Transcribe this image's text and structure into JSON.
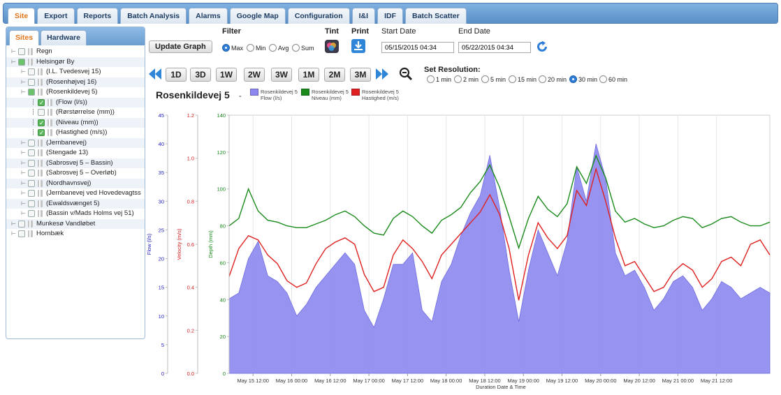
{
  "tabs": [
    {
      "label": "Site",
      "active": true
    },
    {
      "label": "Export",
      "active": false
    },
    {
      "label": "Reports",
      "active": false
    },
    {
      "label": "Batch Analysis",
      "active": false
    },
    {
      "label": "Alarms",
      "active": false
    },
    {
      "label": "Google Map",
      "active": false
    },
    {
      "label": "Configuration",
      "active": false
    },
    {
      "label": "I&I",
      "active": false
    },
    {
      "label": "IDF",
      "active": false
    },
    {
      "label": "Batch Scatter",
      "active": false
    }
  ],
  "sidebar": {
    "tabs": [
      {
        "label": "Sites",
        "active": true
      },
      {
        "label": "Hardware",
        "active": false
      }
    ],
    "tree": [
      {
        "label": "Regn",
        "depth": 0,
        "checked": false,
        "expandable": true
      },
      {
        "label": "Helsingør By",
        "depth": 0,
        "checked": "partial",
        "expandable": true
      },
      {
        "label": "(I.L. Tvedesvej 15)",
        "depth": 1,
        "checked": false,
        "expandable": true
      },
      {
        "label": "(Rosenhøjvej 16)",
        "depth": 1,
        "checked": false,
        "expandable": true
      },
      {
        "label": "(Rosenkildevej 5)",
        "depth": 1,
        "checked": "partial",
        "expandable": true
      },
      {
        "label": "(Flow (l/s))",
        "depth": 2,
        "checked": true,
        "expandable": false
      },
      {
        "label": "(Rørstørrelse (mm))",
        "depth": 2,
        "checked": false,
        "expandable": false
      },
      {
        "label": "(Niveau (mm))",
        "depth": 2,
        "checked": true,
        "expandable": false
      },
      {
        "label": "(Hastighed (m/s))",
        "depth": 2,
        "checked": true,
        "expandable": false
      },
      {
        "label": "(Jernbanevej)",
        "depth": 1,
        "checked": false,
        "expandable": true
      },
      {
        "label": "(Stengade 13)",
        "depth": 1,
        "checked": false,
        "expandable": true
      },
      {
        "label": "(Sabrosvej 5 – Bassin)",
        "depth": 1,
        "checked": false,
        "expandable": true
      },
      {
        "label": "(Sabrosvej 5 – Overløb)",
        "depth": 1,
        "checked": false,
        "expandable": true
      },
      {
        "label": "(Nordhavnsvej)",
        "depth": 1,
        "checked": false,
        "expandable": true
      },
      {
        "label": "(Jernbanevej ved Hovedevagtss",
        "depth": 1,
        "checked": false,
        "expandable": true
      },
      {
        "label": "(Ewaldsvænget 5)",
        "depth": 1,
        "checked": false,
        "expandable": true
      },
      {
        "label": "(Bassin v/Mads Holms vej 51)",
        "depth": 1,
        "checked": false,
        "expandable": true
      },
      {
        "label": "Munkesø Vandløbet",
        "depth": 0,
        "checked": false,
        "expandable": true
      },
      {
        "label": "Hornbæk",
        "depth": 0,
        "checked": false,
        "expandable": true
      }
    ]
  },
  "controls": {
    "update_graph": "Update Graph",
    "filter_label": "Filter",
    "filter_options": [
      {
        "label": "Max",
        "selected": true
      },
      {
        "label": "Min",
        "selected": false
      },
      {
        "label": "Avg",
        "selected": false
      },
      {
        "label": "Sum",
        "selected": false
      }
    ],
    "tint_label": "Tint",
    "print_label": "Print",
    "start_date_label": "Start Date",
    "start_date": "05/15/2015 04:34",
    "end_date_label": "End Date",
    "end_date": "05/22/2015 04:34",
    "ranges": [
      "1D",
      "3D",
      "1W",
      "2W",
      "3W",
      "1M",
      "2M",
      "3M"
    ],
    "resolution_label": "Set Resolution:",
    "resolutions": [
      {
        "label": "1 min",
        "selected": false
      },
      {
        "label": "2 min",
        "selected": false
      },
      {
        "label": "5 min",
        "selected": false
      },
      {
        "label": "15 min",
        "selected": false
      },
      {
        "label": "20 min",
        "selected": false
      },
      {
        "label": "30 min",
        "selected": true
      },
      {
        "label": "60 min",
        "selected": false
      }
    ]
  },
  "chart_title": "Rosenkildevej 5",
  "chart_title_sep": "-",
  "colors": {
    "flow": "#8c88f0",
    "niveau": "#1a8a1a",
    "hastighed": "#e02020",
    "tab_active": "#e0751a"
  },
  "chart_data": {
    "type": "area",
    "xlabel": "Duration Date & Time",
    "x_ticks": [
      "May 15 12:00",
      "May 16 00:00",
      "May 16 12:00",
      "May 17 00:00",
      "May 17 12:00",
      "May 18 00:00",
      "May 18 12:00",
      "May 19 00:00",
      "May 19 12:00",
      "May 20 00:00",
      "May 20 12:00",
      "May 21 00:00",
      "May 21 12:00"
    ],
    "x_range_hours": [
      0,
      168
    ],
    "x_first_tick_hour": 7.43,
    "x_tick_step_hours": 12,
    "legend": [
      {
        "line1": "Rosenkildevej 5",
        "line2": "Flow (l/s)",
        "color": "#8c88f0"
      },
      {
        "line1": "Rosenkildevej 5",
        "line2": "Niveau (mm)",
        "color": "#1a8a1a"
      },
      {
        "line1": "Rosenkildevej 5",
        "line2": "Hastighed (m/s)",
        "color": "#e02020"
      }
    ],
    "axes": [
      {
        "key": "flow",
        "label": "Flow (l/s)",
        "min": 0,
        "max": 45,
        "ticks": [
          "0",
          "5",
          "10",
          "15",
          "20",
          "25",
          "30",
          "35",
          "40",
          "45"
        ],
        "color": "#2020c0"
      },
      {
        "key": "velocity",
        "label": "Velocity (m/s)",
        "min": 0,
        "max": 1.2,
        "ticks": [
          "0.0",
          "0.2",
          "0.4",
          "0.6",
          "0.8",
          "1.0",
          "1.2"
        ],
        "color": "#d02020"
      },
      {
        "key": "depth",
        "label": "Depth (mm)",
        "min": 0,
        "max": 140,
        "ticks": [
          "0",
          "20",
          "40",
          "60",
          "80",
          "100",
          "120",
          "140"
        ],
        "color": "#1a8a1a"
      }
    ],
    "series": [
      {
        "name": "Flow (l/s)",
        "axis": "flow",
        "type": "area",
        "hours": [
          0,
          3,
          6,
          9,
          12,
          15,
          18,
          21,
          24,
          27,
          30,
          33,
          36,
          39,
          42,
          45,
          48,
          51,
          54,
          57,
          60,
          63,
          66,
          69,
          72,
          75,
          78,
          81,
          84,
          87,
          90,
          93,
          96,
          99,
          102,
          105,
          108,
          111,
          114,
          117,
          120,
          123,
          126,
          129,
          132,
          135,
          138,
          141,
          144,
          147,
          150,
          153,
          156,
          159,
          162,
          165,
          168
        ],
        "values": [
          13,
          14,
          20,
          23,
          17,
          16,
          14,
          10,
          12,
          15,
          17,
          19,
          21,
          19,
          11,
          8,
          13,
          19,
          19,
          21,
          11,
          9,
          16,
          19,
          24,
          28,
          31,
          38,
          29,
          18,
          9,
          18,
          25,
          21,
          17,
          23,
          36,
          30,
          40,
          34,
          21,
          17,
          18,
          15,
          11,
          13,
          16,
          17,
          15,
          11,
          13,
          16,
          15,
          13,
          14,
          15,
          14
        ]
      },
      {
        "name": "Hastighed (m/s)",
        "axis": "velocity",
        "type": "line",
        "hours": [
          0,
          3,
          6,
          9,
          12,
          15,
          18,
          21,
          24,
          27,
          30,
          33,
          36,
          39,
          42,
          45,
          48,
          51,
          54,
          57,
          60,
          63,
          66,
          69,
          72,
          75,
          78,
          81,
          84,
          87,
          90,
          93,
          96,
          99,
          102,
          105,
          108,
          111,
          114,
          117,
          120,
          123,
          126,
          129,
          132,
          135,
          138,
          141,
          144,
          147,
          150,
          153,
          156,
          159,
          162,
          165,
          168
        ],
        "values": [
          0.45,
          0.58,
          0.64,
          0.62,
          0.55,
          0.51,
          0.43,
          0.4,
          0.42,
          0.51,
          0.58,
          0.61,
          0.63,
          0.6,
          0.46,
          0.38,
          0.4,
          0.55,
          0.62,
          0.58,
          0.52,
          0.44,
          0.55,
          0.6,
          0.65,
          0.7,
          0.75,
          0.83,
          0.74,
          0.58,
          0.34,
          0.55,
          0.7,
          0.63,
          0.58,
          0.64,
          0.85,
          0.78,
          0.95,
          0.8,
          0.63,
          0.5,
          0.52,
          0.45,
          0.38,
          0.4,
          0.47,
          0.51,
          0.48,
          0.4,
          0.44,
          0.52,
          0.54,
          0.5,
          0.6,
          0.62,
          0.55
        ]
      },
      {
        "name": "Niveau (mm)",
        "axis": "depth",
        "type": "line",
        "hours": [
          0,
          3,
          6,
          9,
          12,
          15,
          18,
          21,
          24,
          27,
          30,
          33,
          36,
          39,
          42,
          45,
          48,
          51,
          54,
          57,
          60,
          63,
          66,
          69,
          72,
          75,
          78,
          81,
          84,
          87,
          90,
          93,
          96,
          99,
          102,
          105,
          108,
          111,
          114,
          117,
          120,
          123,
          126,
          129,
          132,
          135,
          138,
          141,
          144,
          147,
          150,
          153,
          156,
          159,
          162,
          165,
          168
        ],
        "values": [
          80,
          84,
          100,
          88,
          83,
          82,
          80,
          79,
          79,
          81,
          83,
          86,
          88,
          85,
          80,
          76,
          75,
          84,
          88,
          85,
          80,
          76,
          83,
          86,
          90,
          98,
          104,
          113,
          101,
          85,
          68,
          84,
          96,
          89,
          85,
          92,
          112,
          103,
          118,
          106,
          88,
          82,
          84,
          81,
          79,
          80,
          83,
          85,
          84,
          79,
          81,
          84,
          85,
          82,
          80,
          80,
          82
        ]
      }
    ]
  }
}
